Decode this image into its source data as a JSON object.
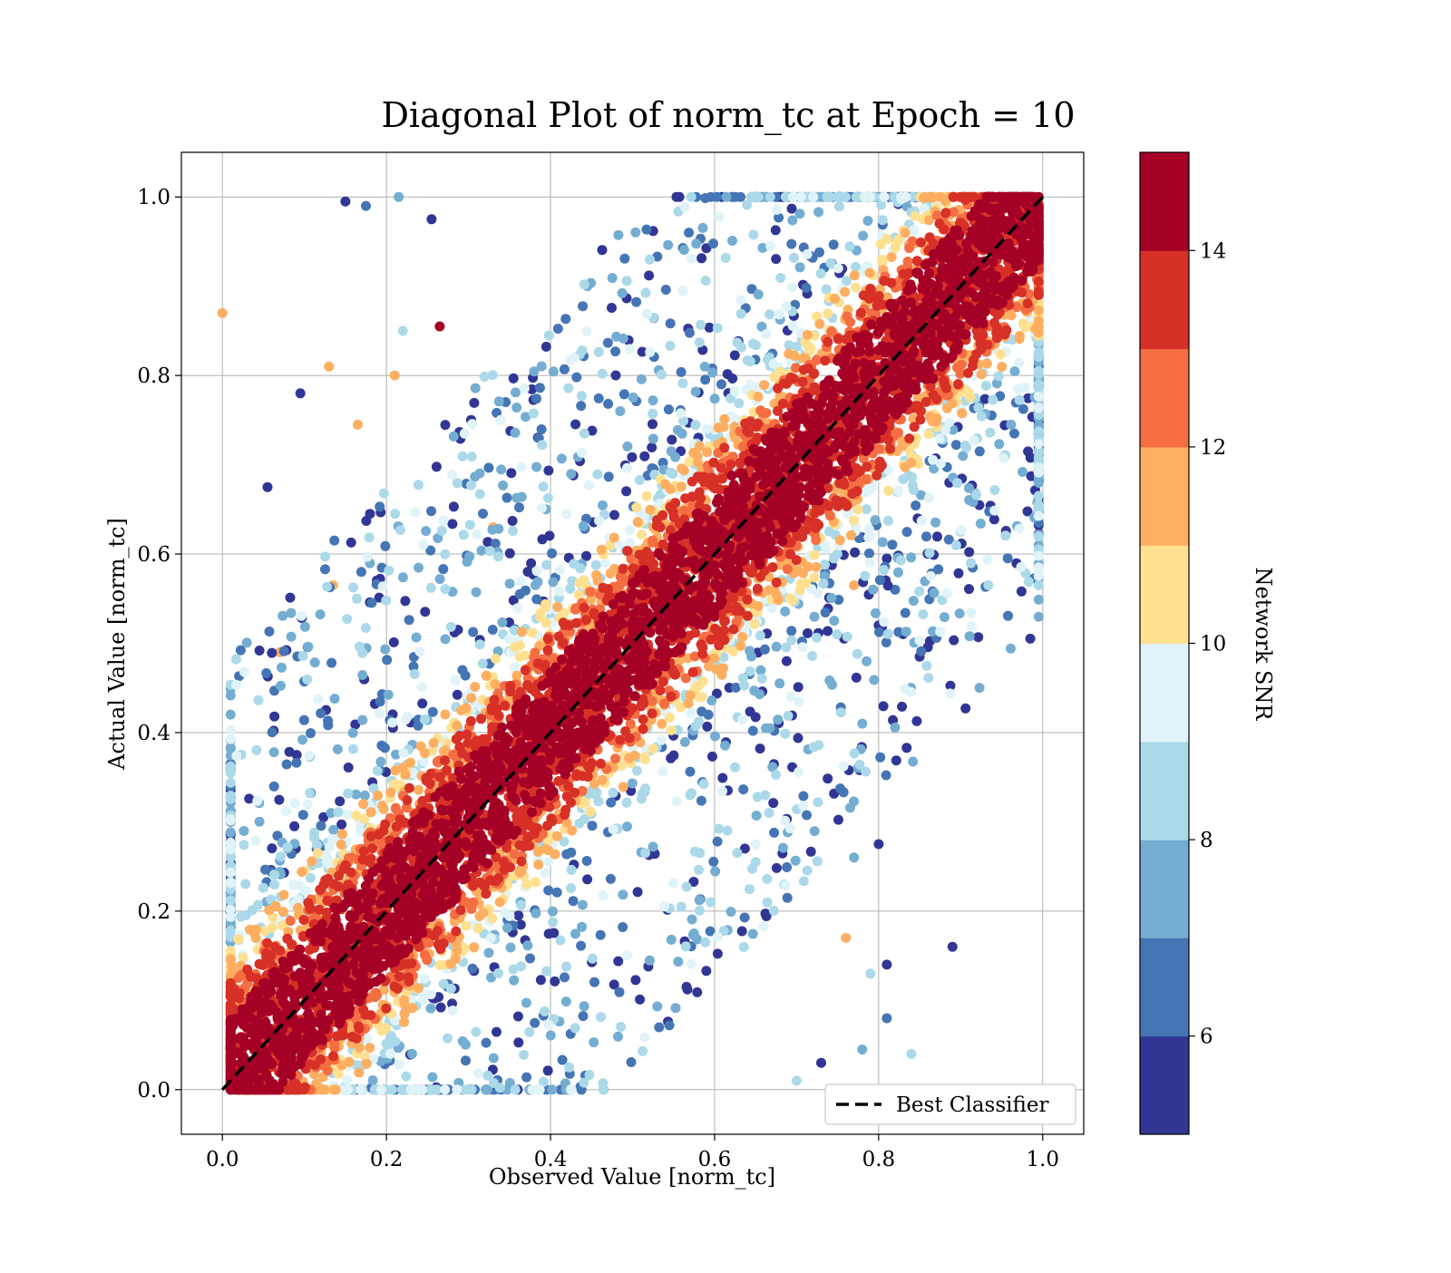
{
  "chart_data": {
    "type": "scatter",
    "title": "Diagonal Plot of norm_tc at Epoch = 10",
    "xlabel": "Observed Value [norm_tc]",
    "ylabel": "Actual Value [norm_tc]",
    "xlim": [
      -0.05,
      1.05
    ],
    "ylim": [
      -0.05,
      1.05
    ],
    "xticks": [
      "0.0",
      "0.2",
      "0.4",
      "0.6",
      "0.8",
      "1.0"
    ],
    "yticks": [
      "0.0",
      "0.2",
      "0.4",
      "0.6",
      "0.8",
      "1.0"
    ],
    "grid": true,
    "legend": {
      "location": "lower right",
      "entries": [
        "Best Classifier"
      ]
    },
    "reference_line": {
      "name": "Best Classifier",
      "style": "dashed",
      "color": "#000000",
      "x": [
        0,
        1
      ],
      "y": [
        0,
        1
      ]
    },
    "colorbar": {
      "label": "Network SNR",
      "range": [
        5,
        15
      ],
      "ticks": [
        "6",
        "8",
        "10",
        "12",
        "14"
      ],
      "tick_values": [
        6,
        8,
        10,
        12,
        14
      ],
      "colors": [
        "#313695",
        "#4575b4",
        "#74add1",
        "#abd9e9",
        "#e0f3f8",
        "#fee090",
        "#fdae61",
        "#f46d43",
        "#d73027",
        "#a50026"
      ]
    },
    "points": [
      {
        "x": 0.0,
        "y": 0.87,
        "c": 11.5
      },
      {
        "x": 0.055,
        "y": 0.675,
        "c": 5.5
      },
      {
        "x": 0.07,
        "y": 0.49,
        "c": 11.5
      },
      {
        "x": 0.095,
        "y": 0.78,
        "c": 5.5
      },
      {
        "x": 0.13,
        "y": 0.81,
        "c": 11.5
      },
      {
        "x": 0.135,
        "y": 0.565,
        "c": 11.5
      },
      {
        "x": 0.15,
        "y": 0.995,
        "c": 5.5
      },
      {
        "x": 0.165,
        "y": 0.745,
        "c": 11.5
      },
      {
        "x": 0.175,
        "y": 0.99,
        "c": 6.5
      },
      {
        "x": 0.18,
        "y": 0.645,
        "c": 5.5
      },
      {
        "x": 0.215,
        "y": 1.0,
        "c": 7.5
      },
      {
        "x": 0.22,
        "y": 0.85,
        "c": 8.5
      },
      {
        "x": 0.255,
        "y": 0.975,
        "c": 5.5
      },
      {
        "x": 0.265,
        "y": 0.855,
        "c": 14.5
      },
      {
        "x": 0.21,
        "y": 0.8,
        "c": 11.5
      },
      {
        "x": 0.33,
        "y": 0.63,
        "c": 11.5
      },
      {
        "x": 0.85,
        "y": 0.485,
        "c": 5.5
      },
      {
        "x": 0.9,
        "y": 0.625,
        "c": 8.5
      },
      {
        "x": 0.89,
        "y": 0.16,
        "c": 5.5
      },
      {
        "x": 0.84,
        "y": 0.04,
        "c": 8.5
      },
      {
        "x": 0.8,
        "y": 0.275,
        "c": 5.5
      },
      {
        "x": 0.8,
        "y": 0.52,
        "c": 5.5
      },
      {
        "x": 0.81,
        "y": 0.595,
        "c": 5.5
      },
      {
        "x": 0.77,
        "y": 0.565,
        "c": 11.5
      },
      {
        "x": 0.77,
        "y": 0.26,
        "c": 7.5
      },
      {
        "x": 0.76,
        "y": 0.17,
        "c": 11.5
      },
      {
        "x": 0.79,
        "y": 0.13,
        "c": 8.5
      },
      {
        "x": 0.81,
        "y": 0.08,
        "c": 6.5
      },
      {
        "x": 0.81,
        "y": 0.14,
        "c": 5.5
      },
      {
        "x": 0.73,
        "y": 0.03,
        "c": 5.5
      },
      {
        "x": 0.78,
        "y": 0.045,
        "c": 7.5
      },
      {
        "x": 0.7,
        "y": 0.01,
        "c": 8.5
      },
      {
        "x": 0.78,
        "y": 0.41,
        "c": 7.5
      },
      {
        "x": 0.79,
        "y": 0.62,
        "c": 9.5
      },
      {
        "x": 0.82,
        "y": 0.56,
        "c": 6.5
      }
    ],
    "band_description": "dense cloud of points concentrated along the diagonal, highest SNR near the line"
  }
}
